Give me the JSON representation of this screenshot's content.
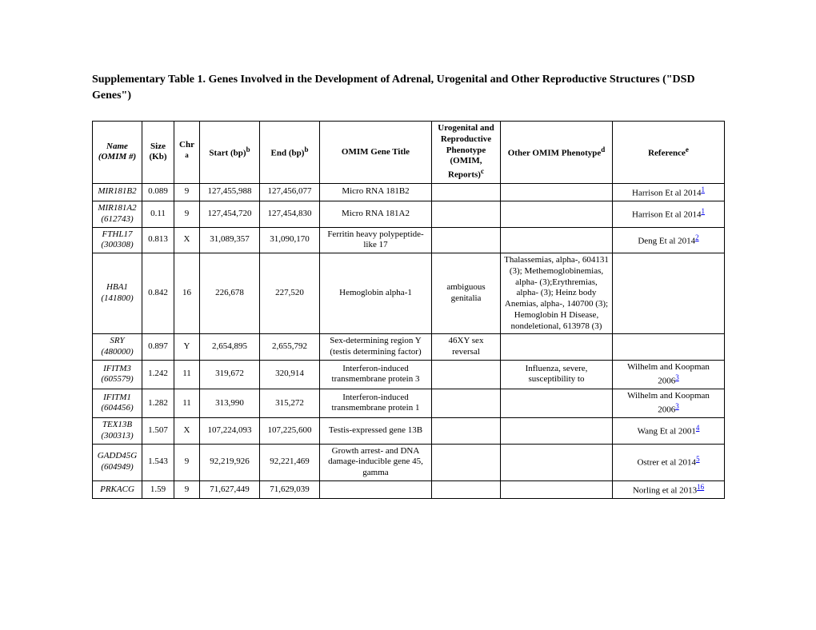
{
  "title": "Supplementary Table 1. Genes Involved in the Development of Adrenal, Urogenital and Other Reproductive Structures (\"DSD Genes\")",
  "headers": {
    "name": "Name",
    "name_sub": "(OMIM #)",
    "size": "Size (Kb)",
    "chr": "Chr",
    "chr_sup": "a",
    "start": "Start (bp)",
    "start_sup": "b",
    "end": "End (bp)",
    "end_sup": "b",
    "omim_title": "OMIM Gene Title",
    "urogenital": "Urogenital and Reproductive Phenotype (OMIM, Reports)",
    "urogenital_sup": "c",
    "other": "Other OMIM Phenotype",
    "other_sup": "d",
    "reference": "Reference",
    "reference_sup": "e"
  },
  "rows": [
    {
      "name": "MIR181B2",
      "omim": "",
      "size": "0.089",
      "chr": "9",
      "start": "127,455,988",
      "end": "127,456,077",
      "omim_title": "Micro RNA 181B2",
      "urogenital": "",
      "other": "",
      "ref_text": "Harrison Et al 2014",
      "ref_sup": "1"
    },
    {
      "name": "MIR181A2",
      "omim": "(612743)",
      "size": "0.11",
      "chr": "9",
      "start": "127,454,720",
      "end": "127,454,830",
      "omim_title": "Micro RNA 181A2",
      "urogenital": "",
      "other": "",
      "ref_text": "Harrison Et al 2014",
      "ref_sup": "1"
    },
    {
      "name": "FTHL17",
      "omim": "(300308)",
      "size": "0.813",
      "chr": "X",
      "start": "31,089,357",
      "end": "31,090,170",
      "omim_title": "Ferritin heavy polypeptide-like 17",
      "urogenital": "",
      "other": "",
      "ref_text": "Deng Et al 2014",
      "ref_sup": "2"
    },
    {
      "name": "HBA1",
      "omim": "(141800)",
      "size": "0.842",
      "chr": "16",
      "start": "226,678",
      "end": "227,520",
      "omim_title": "Hemoglobin alpha-1",
      "urogenital": "ambiguous genitalia",
      "other": "Thalassemias, alpha-, 604131 (3); Methemoglobinemias, alpha- (3);Erythremias, alpha- (3); Heinz body Anemias, alpha-, 140700 (3); Hemoglobin H Disease, nondeletional, 613978 (3)",
      "ref_text": "",
      "ref_sup": ""
    },
    {
      "name": "SRY",
      "omim": "(480000)",
      "size": "0.897",
      "chr": "Y",
      "start": "2,654,895",
      "end": "2,655,792",
      "omim_title": "Sex-determining region Y (testis determining factor)",
      "urogenital": "46XY sex reversal",
      "other": "",
      "ref_text": "",
      "ref_sup": ""
    },
    {
      "name": "IFITM3",
      "omim": "(605579)",
      "size": "1.242",
      "chr": "11",
      "start": "319,672",
      "end": "320,914",
      "omim_title": "Interferon-induced transmembrane protein 3",
      "urogenital": "",
      "other": "Influenza, severe, susceptibility to",
      "ref_text": "Wilhelm and Koopman 2006",
      "ref_sup": "3"
    },
    {
      "name": "IFITM1",
      "omim": "(604456)",
      "size": "1.282",
      "chr": "11",
      "start": "313,990",
      "end": "315,272",
      "omim_title": "Interferon-induced transmembrane protein 1",
      "urogenital": "",
      "other": "",
      "ref_text": "Wilhelm and Koopman 2006",
      "ref_sup": "3"
    },
    {
      "name": "TEX13B",
      "omim": "(300313)",
      "size": "1.507",
      "chr": "X",
      "start": "107,224,093",
      "end": "107,225,600",
      "omim_title": "Testis-expressed gene 13B",
      "urogenital": "",
      "other": "",
      "ref_text": "Wang Et al 2001",
      "ref_sup": "4"
    },
    {
      "name": "GADD45G",
      "omim": "(604949)",
      "size": "1.543",
      "chr": "9",
      "start": "92,219,926",
      "end": "92,221,469",
      "omim_title": "Growth arrest- and DNA damage-inducible gene 45, gamma",
      "urogenital": "",
      "other": "",
      "ref_text": "Ostrer et al 2014",
      "ref_sup": "5"
    },
    {
      "name": "PRKACG",
      "omim": "",
      "size": "1.59",
      "chr": "9",
      "start": "71,627,449",
      "end": "71,629,039",
      "omim_title": "",
      "urogenital": "",
      "other": "",
      "ref_text": "Norling et al 2013",
      "ref_sup": "16"
    }
  ]
}
